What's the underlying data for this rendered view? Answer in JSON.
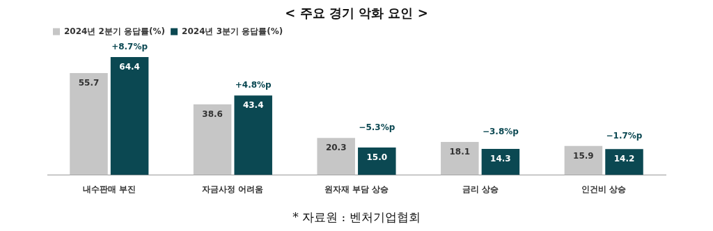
{
  "chart_data": {
    "type": "bar",
    "title": "< 주요 경기 악화 요인 >",
    "categories": [
      "내수판매 부진",
      "자금사정 어려움",
      "원자재 부담 상승",
      "금리 상승",
      "인건비 상승"
    ],
    "series": [
      {
        "name": "2024년 2분기 응답률(%)",
        "color": "#c6c6c6",
        "values": [
          55.7,
          38.6,
          20.3,
          18.1,
          15.9
        ]
      },
      {
        "name": "2024년 3분기 응답률(%)",
        "color": "#0b4852",
        "values": [
          64.4,
          43.4,
          15.0,
          14.3,
          14.2
        ],
        "value_labels": [
          "64.4",
          "43.4",
          "15.0",
          "14.3",
          "14.2"
        ]
      }
    ],
    "data_labels": true,
    "legend": "top left",
    "grid": false,
    "annotations": [
      {
        "text": "+8.7%p",
        "x": "내수판매 부진",
        "y": 64.4
      },
      {
        "text": "+4.8%p",
        "x": "자금사정 어려움",
        "y": 43.4
      },
      {
        "text": "−5.3%p",
        "x": "원자재 부담 상승",
        "y": 20.3
      },
      {
        "text": "−3.8%p",
        "x": "금리 상승",
        "y": 18.1
      },
      {
        "text": "−1.7%p",
        "x": "인건비 상승",
        "y": 15.9
      },
      "* 자료원 : 벤처기업협회"
    ]
  }
}
